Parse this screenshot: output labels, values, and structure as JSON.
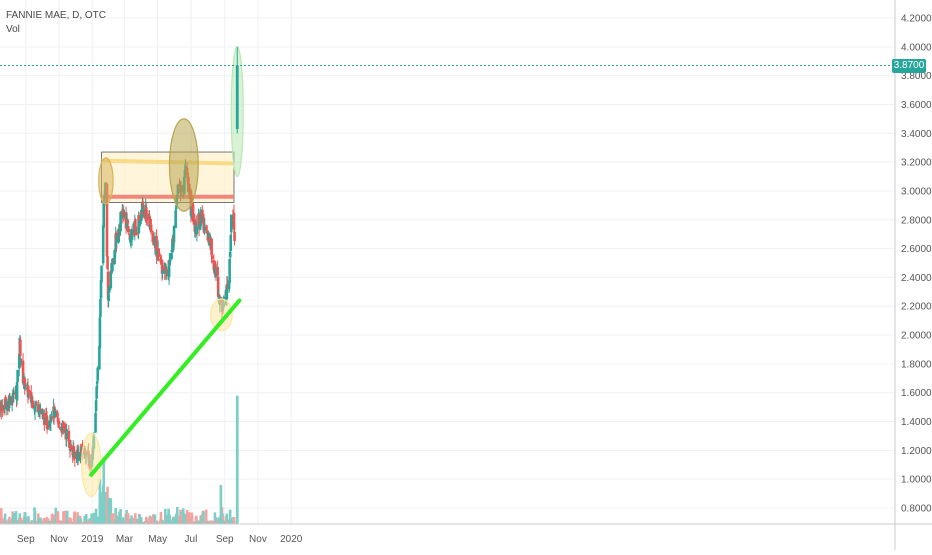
{
  "legend": {
    "symbol_line": "FANNIE MAE, D, OTC",
    "volume_label": "Vol"
  },
  "colors": {
    "up": "#26a69a",
    "down": "#ef5350",
    "up_volume": "#7ccfc6",
    "down_volume": "#f4a3a1",
    "grid": "#eef0f3",
    "axis_text": "#555555",
    "price_line": "#26a69a",
    "trendline": "#33ee22",
    "resistance_top": "#f7d57a",
    "resistance_bottom": "#f07a72",
    "box_fill": "#fdf1cf"
  },
  "current_price": {
    "value": 3.87,
    "label": "3.8700"
  },
  "chart_data": {
    "type": "candlestick",
    "title": "FANNIE MAE, D, OTC",
    "yaxis": {
      "ticks": [
        0.8,
        1.0,
        1.2,
        1.4,
        1.6,
        1.8,
        2.0,
        2.2,
        2.4,
        2.6,
        2.8,
        3.0,
        3.2,
        3.4,
        3.6,
        3.8,
        4.0,
        4.2
      ],
      "tick_labels": [
        "0.8000",
        "1.0000",
        "1.2000",
        "1.4000",
        "1.6000",
        "1.8000",
        "2.0000",
        "2.2000",
        "2.4000",
        "2.6000",
        "2.8000",
        "3.0000",
        "3.2000",
        "3.4000",
        "3.6000",
        "3.8000",
        "4.0000",
        "4.2000"
      ],
      "range": [
        0.7,
        4.3
      ]
    },
    "xaxis": {
      "labels": [
        "Sep",
        "Nov",
        "2019",
        "Mar",
        "May",
        "Jul",
        "Sep",
        "Nov",
        "2020"
      ],
      "dates": [
        "2018-09-01",
        "2018-11-01",
        "2019-01-01",
        "2019-03-01",
        "2019-05-01",
        "2019-07-01",
        "2019-09-01",
        "2019-11-01",
        "2020-01-01"
      ]
    },
    "price_path": [
      [
        "2018-07-01",
        1.42
      ],
      [
        "2018-07-15",
        1.48
      ],
      [
        "2018-08-01",
        1.55
      ],
      [
        "2018-08-15",
        1.6
      ],
      [
        "2018-08-21",
        1.95
      ],
      [
        "2018-08-25",
        1.72
      ],
      [
        "2018-09-10",
        1.55
      ],
      [
        "2018-09-25",
        1.5
      ],
      [
        "2018-10-10",
        1.38
      ],
      [
        "2018-10-20",
        1.48
      ],
      [
        "2018-11-01",
        1.38
      ],
      [
        "2018-11-15",
        1.32
      ],
      [
        "2018-11-25",
        1.18
      ],
      [
        "2018-12-10",
        1.17
      ],
      [
        "2018-12-20",
        1.2
      ],
      [
        "2018-12-28",
        1.1
      ],
      [
        "2019-01-02",
        1.2
      ],
      [
        "2019-01-08",
        1.55
      ],
      [
        "2019-01-14",
        1.95
      ],
      [
        "2019-01-20",
        2.7
      ],
      [
        "2019-01-25",
        3.1
      ],
      [
        "2019-01-30",
        2.25
      ],
      [
        "2019-02-10",
        2.6
      ],
      [
        "2019-02-25",
        2.85
      ],
      [
        "2019-03-10",
        2.7
      ],
      [
        "2019-03-25",
        2.75
      ],
      [
        "2019-04-05",
        2.9
      ],
      [
        "2019-04-20",
        2.72
      ],
      [
        "2019-05-05",
        2.5
      ],
      [
        "2019-05-20",
        2.45
      ],
      [
        "2019-06-01",
        2.72
      ],
      [
        "2019-06-08",
        3.1
      ],
      [
        "2019-06-15",
        2.95
      ],
      [
        "2019-06-22",
        3.15
      ],
      [
        "2019-06-30",
        2.9
      ],
      [
        "2019-07-10",
        2.75
      ],
      [
        "2019-07-20",
        2.82
      ],
      [
        "2019-08-01",
        2.7
      ],
      [
        "2019-08-10",
        2.55
      ],
      [
        "2019-08-18",
        2.4
      ],
      [
        "2019-08-25",
        2.15
      ],
      [
        "2019-09-01",
        2.28
      ],
      [
        "2019-09-08",
        2.3
      ],
      [
        "2019-09-12",
        2.75
      ],
      [
        "2019-09-16",
        2.85
      ],
      [
        "2019-09-20",
        2.65
      ]
    ],
    "last_candle": {
      "date": "2019-09-24",
      "open": 3.43,
      "high": 4.0,
      "low": 3.4,
      "close": 3.87
    },
    "volume": {
      "scale_max": 1.6,
      "spike": {
        "date": "2019-09-24",
        "value": 1.58
      },
      "notable": [
        [
          "2019-01-22",
          0.82
        ],
        [
          "2019-01-15",
          0.55
        ],
        [
          "2019-08-25",
          0.48
        ]
      ]
    },
    "annotations": {
      "resistance_box": {
        "x0": "2019-01-18",
        "x1": "2019-09-18",
        "y0": 2.92,
        "y1": 3.27
      },
      "resistance_top_line": {
        "x0": "2019-01-18",
        "x1": "2019-09-18",
        "y0": 3.21,
        "y1": 3.19
      },
      "resistance_bottom_line": {
        "x0": "2019-01-18",
        "x1": "2019-09-18",
        "y": 2.96
      },
      "trendline": {
        "x0": "2018-12-30",
        "y0": 1.03,
        "x1": "2019-09-28",
        "y1": 2.24
      },
      "circles": [
        {
          "date": "2018-12-30",
          "value": 1.1,
          "rx_days": 8,
          "ry": 0.22,
          "color": "#fbe9a3"
        },
        {
          "date": "2019-01-26",
          "value": 3.07,
          "rx_days": 6,
          "ry": 0.16,
          "color": "#d8b35c"
        },
        {
          "date": "2019-06-18",
          "value": 3.18,
          "rx_days": 12,
          "ry": 0.32,
          "color": "#b8a54f"
        },
        {
          "date": "2019-08-26",
          "value": 2.14,
          "rx_days": 9,
          "ry": 0.11,
          "color": "#fbe7a0"
        },
        {
          "date": "2019-09-24",
          "value": 3.55,
          "rx_days": 5,
          "ry": 0.45,
          "color": "#b9e8b2"
        }
      ]
    }
  }
}
